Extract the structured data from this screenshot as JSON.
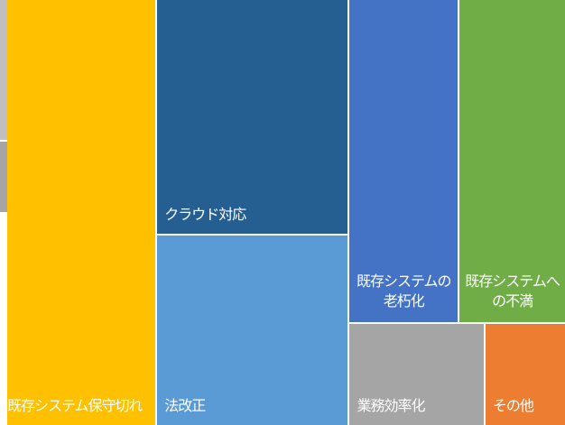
{
  "chart_data": {
    "type": "treemap",
    "categories": [
      "既存システム保守切れ",
      "クラウド対応",
      "法改正",
      "既存システムの老朽化",
      "既存システムへの不満",
      "業務効率化",
      "その他"
    ],
    "values": [
      26.9,
      19.1,
      15.4,
      15.0,
      14.4,
      5.8,
      3.4
    ],
    "colors": [
      "#ffc000",
      "#255e91",
      "#5b9bd5",
      "#4472c4",
      "#70ad47",
      "#a5a5a5",
      "#ed7d31"
    ]
  }
}
